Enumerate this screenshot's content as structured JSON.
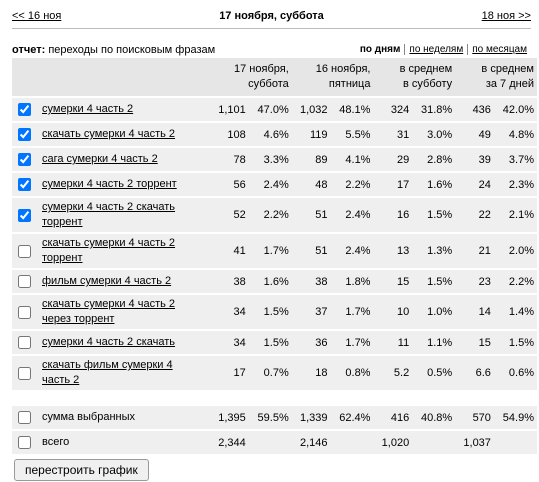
{
  "nav": {
    "prev": "<< 16 ноя",
    "title": "17 ноября, суббота",
    "next": "18 ноя >>"
  },
  "report": {
    "label": "отчет:",
    "name": "переходы по поисковым фразам",
    "periods": [
      {
        "text": "по дням",
        "active": true
      },
      {
        "text": "по неделям",
        "active": false
      },
      {
        "text": "по месяцам",
        "active": false
      }
    ]
  },
  "table": {
    "headers": [
      [
        "17 ноября,",
        "суббота"
      ],
      [
        "16 ноября,",
        "пятница"
      ],
      [
        "в среднем",
        "в субботу"
      ],
      [
        "в среднем",
        "за 7 дней"
      ]
    ],
    "rows": [
      {
        "checked": true,
        "label": "сумерки 4 часть 2",
        "cells": [
          [
            "1,101",
            "47.0%"
          ],
          [
            "1,032",
            "48.1%"
          ],
          [
            "324",
            "31.8%"
          ],
          [
            "436",
            "42.0%"
          ]
        ]
      },
      {
        "checked": true,
        "label": "скачать сумерки 4 часть 2",
        "cells": [
          [
            "108",
            "4.6%"
          ],
          [
            "119",
            "5.5%"
          ],
          [
            "31",
            "3.0%"
          ],
          [
            "49",
            "4.8%"
          ]
        ]
      },
      {
        "checked": true,
        "label": "сага сумерки 4 часть 2",
        "cells": [
          [
            "78",
            "3.3%"
          ],
          [
            "89",
            "4.1%"
          ],
          [
            "29",
            "2.8%"
          ],
          [
            "39",
            "3.7%"
          ]
        ]
      },
      {
        "checked": true,
        "label": "сумерки 4 часть 2 торрент",
        "cells": [
          [
            "56",
            "2.4%"
          ],
          [
            "48",
            "2.2%"
          ],
          [
            "17",
            "1.6%"
          ],
          [
            "24",
            "2.3%"
          ]
        ]
      },
      {
        "checked": true,
        "label": "сумерки 4 часть 2 скачать торрент",
        "cells": [
          [
            "52",
            "2.2%"
          ],
          [
            "51",
            "2.4%"
          ],
          [
            "16",
            "1.5%"
          ],
          [
            "22",
            "2.1%"
          ]
        ]
      },
      {
        "checked": false,
        "label": "скачать сумерки 4 часть 2 торрент",
        "cells": [
          [
            "41",
            "1.7%"
          ],
          [
            "51",
            "2.4%"
          ],
          [
            "13",
            "1.3%"
          ],
          [
            "21",
            "2.0%"
          ]
        ]
      },
      {
        "checked": false,
        "label": "фильм сумерки 4 часть 2",
        "cells": [
          [
            "38",
            "1.6%"
          ],
          [
            "38",
            "1.8%"
          ],
          [
            "15",
            "1.5%"
          ],
          [
            "23",
            "2.2%"
          ]
        ]
      },
      {
        "checked": false,
        "label": "скачать сумерки 4 часть 2 через торрент",
        "cells": [
          [
            "34",
            "1.5%"
          ],
          [
            "37",
            "1.7%"
          ],
          [
            "10",
            "1.0%"
          ],
          [
            "14",
            "1.4%"
          ]
        ]
      },
      {
        "checked": false,
        "label": "сумерки 4 часть 2 скачать",
        "cells": [
          [
            "34",
            "1.5%"
          ],
          [
            "36",
            "1.7%"
          ],
          [
            "11",
            "1.1%"
          ],
          [
            "15",
            "1.5%"
          ]
        ]
      },
      {
        "checked": false,
        "label": "скачать фильм сумерки 4 часть 2",
        "cells": [
          [
            "17",
            "0.7%"
          ],
          [
            "18",
            "0.8%"
          ],
          [
            "5.2",
            "0.5%"
          ],
          [
            "6.6",
            "0.6%"
          ]
        ]
      }
    ],
    "summary": [
      {
        "checked": false,
        "label": "сумма выбранных",
        "cells": [
          [
            "1,395",
            "59.5%"
          ],
          [
            "1,339",
            "62.4%"
          ],
          [
            "416",
            "40.8%"
          ],
          [
            "570",
            "54.9%"
          ]
        ]
      },
      {
        "checked": false,
        "label": "всего",
        "cells": [
          [
            "2,344"
          ],
          [
            "2,146"
          ],
          [
            "1,020"
          ],
          [
            "1,037"
          ]
        ]
      }
    ]
  },
  "button": "перестроить график"
}
